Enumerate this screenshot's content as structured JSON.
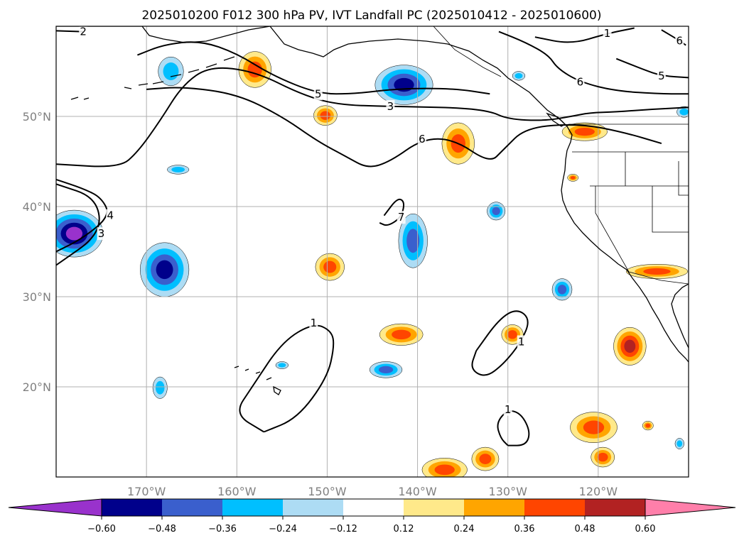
{
  "title": "2025010200 F012 300 hPa PV, IVT Landfall PC (2025010412 - 2025010600)",
  "map": {
    "lon_range": [
      -180,
      -110
    ],
    "lat_range": [
      10,
      60
    ],
    "gridlines": true,
    "lon_ticks": [
      {
        "lon": -170,
        "label": "170°W"
      },
      {
        "lon": -160,
        "label": "160°W"
      },
      {
        "lon": -150,
        "label": "150°W"
      },
      {
        "lon": -140,
        "label": "140°W"
      },
      {
        "lon": -130,
        "label": "130°W"
      },
      {
        "lon": -120,
        "label": "120°W"
      }
    ],
    "lat_ticks": [
      {
        "lat": 50,
        "label": "50°N"
      },
      {
        "lat": 40,
        "label": "40°N"
      },
      {
        "lat": 30,
        "label": "30°N"
      },
      {
        "lat": 20,
        "label": "20°N"
      }
    ]
  },
  "pv_contours": [
    {
      "label": "2",
      "points": [
        [
          -180,
          59.5
        ],
        [
          -177,
          59.4
        ]
      ]
    },
    {
      "label": "3",
      "points": [
        [
          -180,
          44.7
        ],
        [
          -173,
          44.3
        ],
        [
          -171,
          46
        ],
        [
          -168.5,
          49.5
        ],
        [
          -166,
          53.5
        ],
        [
          -163,
          55.6
        ],
        [
          -158,
          55
        ],
        [
          -153,
          52.5
        ],
        [
          -149,
          51.3
        ],
        [
          -143,
          51.1
        ],
        [
          -136,
          51
        ],
        [
          -132,
          50.6
        ],
        [
          -130,
          49.7
        ],
        [
          -126,
          49.5
        ],
        [
          -123,
          50
        ],
        [
          -121,
          50.4
        ],
        [
          -118,
          50.5
        ],
        [
          -114,
          50.8
        ],
        [
          -110,
          51
        ]
      ]
    },
    {
      "label": "4",
      "points": [
        [
          -180,
          43
        ],
        [
          -177,
          42
        ],
        [
          -175,
          41
        ],
        [
          -174,
          39
        ],
        [
          -177,
          36.5
        ],
        [
          -180,
          35
        ]
      ]
    },
    {
      "label": "5",
      "points": [
        [
          -171,
          56.8
        ],
        [
          -168,
          58
        ],
        [
          -164,
          58.4
        ],
        [
          -160,
          57
        ],
        [
          -156,
          54.5
        ],
        [
          -151,
          52.5
        ],
        [
          -147,
          52.5
        ],
        [
          -142,
          53.1
        ],
        [
          -136,
          53.1
        ],
        [
          -132,
          52.5
        ]
      ]
    },
    {
      "label": "6",
      "points": [
        [
          -131,
          59.4
        ],
        [
          -128,
          58.2
        ],
        [
          -125.5,
          56.8
        ],
        [
          -124.5,
          55.3
        ],
        [
          -122,
          53.8
        ],
        [
          -118,
          52.8
        ],
        [
          -113,
          52.5
        ],
        [
          -110,
          52.5
        ]
      ]
    },
    {
      "label": "6",
      "points": [
        [
          -113,
          59.6
        ],
        [
          -111,
          58.4
        ],
        [
          -110.3,
          57.9
        ]
      ]
    },
    {
      "label": "7",
      "points": [
        [
          -143.7,
          39
        ],
        [
          -142.2,
          41
        ],
        [
          -141.4,
          40.5
        ],
        [
          -141.8,
          38.8
        ],
        [
          -143.3,
          37.8
        ],
        [
          -144.2,
          38.2
        ]
      ]
    },
    {
      "label": "6",
      "points": [
        [
          -170,
          53
        ],
        [
          -166,
          53.3
        ],
        [
          -160,
          52.5
        ],
        [
          -155,
          50
        ],
        [
          -151,
          47.2
        ],
        [
          -148,
          45.6
        ],
        [
          -145.5,
          44.2
        ],
        [
          -143,
          45
        ],
        [
          -139.5,
          47.5
        ],
        [
          -136,
          47.5
        ],
        [
          -132,
          44.8
        ],
        [
          -130.5,
          46.3
        ],
        [
          -128,
          48.8
        ],
        [
          -122,
          49.2
        ],
        [
          -117,
          48.2
        ],
        [
          -113,
          47
        ]
      ]
    },
    {
      "label": "1",
      "points": [
        [
          -133.5,
          24
        ],
        [
          -131,
          27.5
        ],
        [
          -129,
          28.7
        ],
        [
          -127.5,
          27.5
        ],
        [
          -128.5,
          25
        ],
        [
          -130.5,
          22.5
        ],
        [
          -132.5,
          21
        ],
        [
          -134.2,
          22
        ],
        [
          -133.5,
          24
        ]
      ]
    },
    {
      "label": "1",
      "points": [
        [
          -130,
          13.5
        ],
        [
          -128,
          13.5
        ],
        [
          -127.5,
          15
        ],
        [
          -128.5,
          17
        ],
        [
          -130,
          17.5
        ],
        [
          -131.3,
          16
        ],
        [
          -130.8,
          14.3
        ],
        [
          -130,
          13.5
        ]
      ]
    },
    {
      "label": "1",
      "points": [
        [
          -157,
          15
        ],
        [
          -153.3,
          16.5
        ],
        [
          -150,
          21
        ],
        [
          -149.2,
          24.5
        ],
        [
          -149.5,
          26.2
        ],
        [
          -151.5,
          27.1
        ],
        [
          -155,
          25
        ],
        [
          -158.3,
          20
        ],
        [
          -160.3,
          17
        ],
        [
          -157,
          15
        ]
      ]
    },
    {
      "label": "1",
      "points": [
        [
          -127,
          58.8
        ],
        [
          -123,
          58
        ],
        [
          -119,
          59.2
        ],
        [
          -116,
          59.8
        ]
      ]
    },
    {
      "label": "3",
      "points": [
        [
          -180,
          42.5
        ],
        [
          -175.5,
          41
        ],
        [
          -175,
          37
        ],
        [
          -180,
          33.5
        ]
      ]
    },
    {
      "label": "5",
      "points": [
        [
          -118,
          56.4
        ],
        [
          -115,
          55.2
        ],
        [
          -113,
          54.5
        ],
        [
          -110,
          54.3
        ]
      ]
    }
  ],
  "ivt_fill": {
    "legend_levels": [
      -0.6,
      -0.48,
      -0.36,
      -0.24,
      -0.12,
      0.12,
      0.24,
      0.36,
      0.48,
      0.6
    ],
    "legend_colors": [
      "#9932CC",
      "#00008B",
      "#3A5FCD",
      "#00BFFF",
      "#ADDCF4",
      "#FFFFFF",
      "#FFE98A",
      "#FFA500",
      "#FF4500",
      "#B22222",
      "#FF7FAA"
    ],
    "legend_labels": [
      "−0.60",
      "−0.48",
      "−0.36",
      "−0.24",
      "−0.12",
      "0.12",
      "0.24",
      "0.36",
      "0.48",
      "0.60"
    ],
    "blobs": [
      {
        "lon": -178,
        "lat": 37,
        "rx": 3.2,
        "ry": 2.6,
        "value": -0.6
      },
      {
        "lon": -168,
        "lat": 33,
        "rx": 2.7,
        "ry": 3,
        "value": -0.5
      },
      {
        "lon": -167.3,
        "lat": 55,
        "rx": 1.4,
        "ry": 1.6,
        "value": -0.35
      },
      {
        "lon": -166.5,
        "lat": 44.1,
        "rx": 1.2,
        "ry": 0.5,
        "value": -0.3
      },
      {
        "lon": -168.5,
        "lat": 19.9,
        "rx": 0.8,
        "ry": 1.2,
        "value": -0.35
      },
      {
        "lon": -158,
        "lat": 55.2,
        "rx": 1.8,
        "ry": 2,
        "value": 0.4
      },
      {
        "lon": -150.2,
        "lat": 50.1,
        "rx": 1.3,
        "ry": 1.1,
        "value": 0.42
      },
      {
        "lon": -141.5,
        "lat": 53.5,
        "rx": 3.2,
        "ry": 2.2,
        "value": -0.55
      },
      {
        "lon": -135.5,
        "lat": 47,
        "rx": 1.8,
        "ry": 2.3,
        "value": 0.4
      },
      {
        "lon": -140.5,
        "lat": 36.2,
        "rx": 1.6,
        "ry": 3,
        "value": -0.4
      },
      {
        "lon": -149.7,
        "lat": 33.3,
        "rx": 1.6,
        "ry": 1.5,
        "value": 0.44
      },
      {
        "lon": -131.3,
        "lat": 39.5,
        "rx": 1,
        "ry": 1,
        "value": -0.38
      },
      {
        "lon": -121.5,
        "lat": 48.3,
        "rx": 2.5,
        "ry": 1,
        "value": 0.4
      },
      {
        "lon": -122.8,
        "lat": 43.2,
        "rx": 0.6,
        "ry": 0.4,
        "value": 0.37
      },
      {
        "lon": -113.5,
        "lat": 32.8,
        "rx": 3.4,
        "ry": 0.8,
        "value": 0.4
      },
      {
        "lon": -124,
        "lat": 30.8,
        "rx": 1.1,
        "ry": 1.2,
        "value": -0.36
      },
      {
        "lon": -141.8,
        "lat": 25.8,
        "rx": 2.4,
        "ry": 1.2,
        "value": 0.37
      },
      {
        "lon": -143.5,
        "lat": 21.9,
        "rx": 1.8,
        "ry": 0.9,
        "value": -0.36
      },
      {
        "lon": -129.5,
        "lat": 25.8,
        "rx": 1.2,
        "ry": 1.1,
        "value": 0.4
      },
      {
        "lon": -116.5,
        "lat": 24.5,
        "rx": 1.8,
        "ry": 2.1,
        "value": 0.5
      },
      {
        "lon": -120.5,
        "lat": 15.5,
        "rx": 2.6,
        "ry": 1.7,
        "value": 0.47
      },
      {
        "lon": -119.5,
        "lat": 12.2,
        "rx": 1.3,
        "ry": 1.1,
        "value": 0.4
      },
      {
        "lon": -132.5,
        "lat": 12,
        "rx": 1.5,
        "ry": 1.3,
        "value": 0.4
      },
      {
        "lon": -137,
        "lat": 10.8,
        "rx": 2.5,
        "ry": 1.3,
        "value": 0.47
      },
      {
        "lon": -155,
        "lat": 22.4,
        "rx": 0.7,
        "ry": 0.4,
        "value": -0.3
      },
      {
        "lon": -128.8,
        "lat": 54.5,
        "rx": 0.7,
        "ry": 0.5,
        "value": -0.35
      },
      {
        "lon": -110.5,
        "lat": 50.5,
        "rx": 0.8,
        "ry": 0.6,
        "value": -0.35
      },
      {
        "lon": -111,
        "lat": 13.7,
        "rx": 0.5,
        "ry": 0.6,
        "value": -0.35
      },
      {
        "lon": -114.5,
        "lat": 15.7,
        "rx": 0.6,
        "ry": 0.5,
        "value": 0.37
      }
    ]
  }
}
